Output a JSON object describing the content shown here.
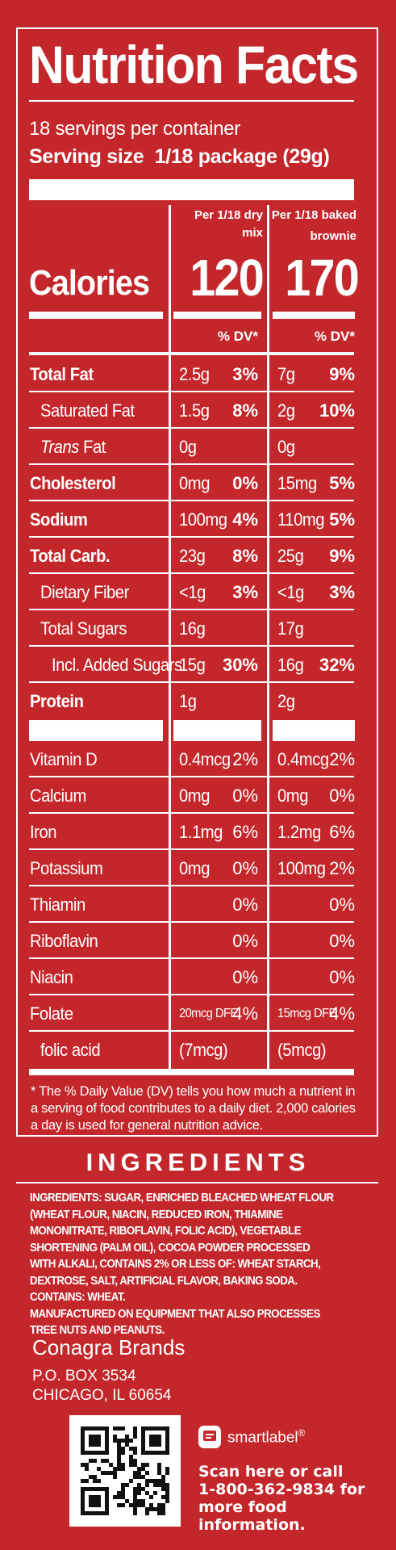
{
  "panel": {
    "title": "Nutrition Facts",
    "servings": "18 servings per container",
    "serving_size_label": "Serving size",
    "serving_size_value": "1/18 package (29g)",
    "col1_header": "Per 1/18 dry mix",
    "col2_header_line1": "Per 1/18 baked",
    "col2_header_line2": "brownie",
    "calories_label": "Calories",
    "calories_col1": "120",
    "calories_col2": "170",
    "dv_col1": "% DV*",
    "dv_col2": "% DV*",
    "rows": [
      {
        "label": "Total Fat",
        "bold": true,
        "v1": "2.5g",
        "p1": "3%",
        "v2": "7g",
        "p2": "9%"
      },
      {
        "label": "Saturated Fat",
        "bold": false,
        "v1": "1.5g",
        "p1": "8%",
        "v2": "2g",
        "p2": "10%"
      },
      {
        "label_italic": "Trans",
        "label_rest": " Fat",
        "bold": false,
        "v1": "0g",
        "p1": "",
        "v2": "0g",
        "p2": ""
      },
      {
        "label": "Cholesterol",
        "bold": true,
        "v1": "0mg",
        "p1": "0%",
        "v2": "15mg",
        "p2": "5%"
      },
      {
        "label": "Sodium",
        "bold": true,
        "v1": "100mg",
        "p1": "4%",
        "v2": "110mg",
        "p2": "5%"
      },
      {
        "label": "Total Carb.",
        "bold": true,
        "v1": "23g",
        "p1": "8%",
        "v2": "25g",
        "p2": "9%"
      },
      {
        "label": "Dietary Fiber",
        "bold": false,
        "v1": "<1g",
        "p1": "3%",
        "v2": "<1g",
        "p2": "3%"
      },
      {
        "label": "Total Sugars",
        "bold": false,
        "v1": "16g",
        "p1": "",
        "v2": "17g",
        "p2": ""
      },
      {
        "label": "Incl. Added Sugars",
        "bold": false,
        "v1": "15g",
        "p1": "30%",
        "v2": "16g",
        "p2": "32%"
      },
      {
        "label": "Protein",
        "bold": true,
        "v1": "1g",
        "p1": "",
        "v2": "2g",
        "p2": ""
      }
    ],
    "micros": [
      {
        "label": "Vitamin D",
        "v1": "0.4mcg",
        "p1": "2%",
        "v2": "0.4mcg",
        "p2": "2%"
      },
      {
        "label": "Calcium",
        "v1": "0mg",
        "p1": "0%",
        "v2": "0mg",
        "p2": "0%"
      },
      {
        "label": "Iron",
        "v1": "1.1mg",
        "p1": "6%",
        "v2": "1.2mg",
        "p2": "6%"
      },
      {
        "label": "Potassium",
        "v1": "0mg",
        "p1": "0%",
        "v2": "100mg",
        "p2": "2%"
      },
      {
        "label": "Thiamin",
        "v1": "",
        "p1": "0%",
        "v2": "",
        "p2": "0%"
      },
      {
        "label": "Riboflavin",
        "v1": "",
        "p1": "0%",
        "v2": "",
        "p2": "0%"
      },
      {
        "label": "Niacin",
        "v1": "",
        "p1": "0%",
        "v2": "",
        "p2": "0%"
      },
      {
        "label": "Folate",
        "v1": "20mcg DFE",
        "p1": "4%",
        "v2": "15mcg DFE",
        "p2": "4%"
      },
      {
        "label": "folic acid",
        "v1": "(7mcg)",
        "p1": "",
        "v2": "(5mcg)",
        "p2": ""
      }
    ],
    "footnote": "* The % Daily Value (DV) tells you how much a nutrient in a serving of food contributes to a daily diet. 2,000 calories a day is used for general nutrition advice."
  },
  "ingredients": {
    "title": "INGREDIENTS",
    "text": "INGREDIENTS: SUGAR, ENRICHED BLEACHED WHEAT FLOUR (WHEAT FLOUR, NIACIN, REDUCED IRON, THIAMINE MONONITRATE, RIBOFLAVIN, FOLIC ACID), VEGETABLE SHORTENING (PALM OIL), COCOA POWDER PROCESSED WITH ALKALI, CONTAINS 2% OR LESS OF: WHEAT STARCH, DEXTROSE, SALT, ARTIFICIAL FLAVOR, BAKING SODA. CONTAINS: WHEAT.",
    "warning": "MANUFACTURED ON EQUIPMENT THAT ALSO PROCESSES TREE NUTS AND PEANUTS."
  },
  "manufacturer": {
    "name": "Conagra Brands",
    "address1": "P.O. BOX 3534",
    "address2": "CHICAGO, IL 60654"
  },
  "smartlabel": {
    "brand": "smartlabel",
    "reg": "®",
    "line1": "Scan here or call",
    "line2": "1-800-362-9834 for",
    "line3": "more food information."
  },
  "colors": {
    "background": "#c4272b",
    "text": "#ffffff"
  }
}
